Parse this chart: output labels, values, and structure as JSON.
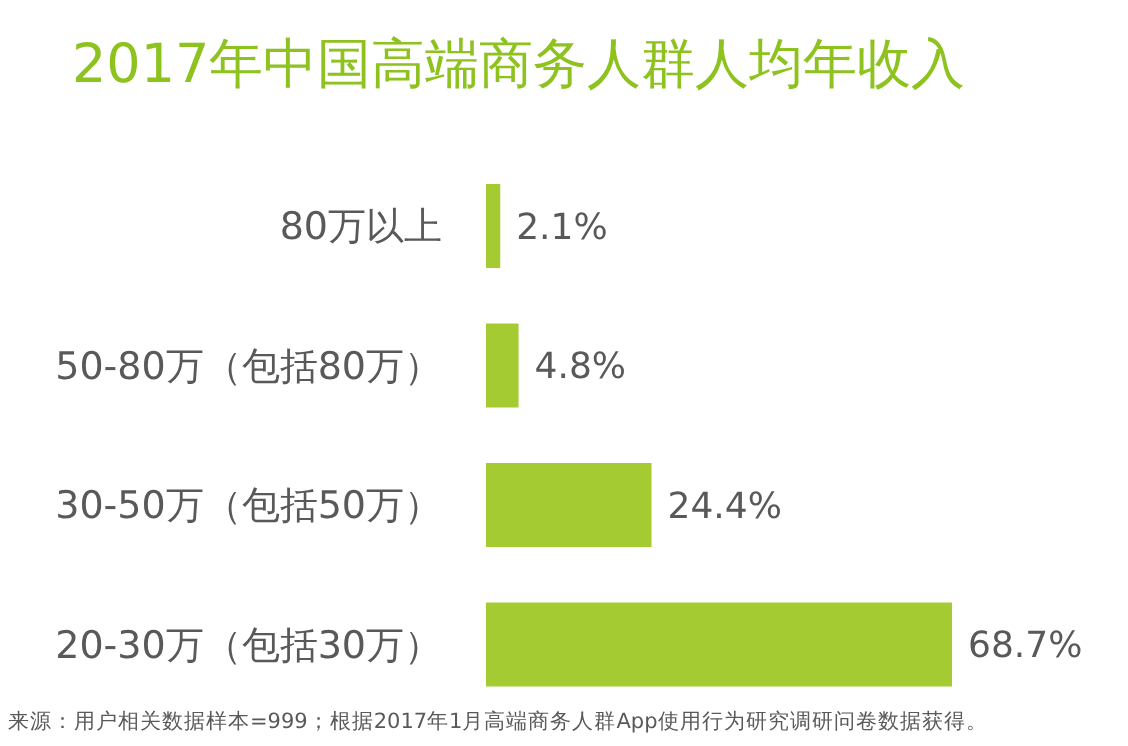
{
  "chart_data": {
    "type": "bar",
    "orientation": "horizontal",
    "title": "2017年中国高端商务人群人均年收入",
    "categories": [
      "80万以上",
      "50-80万（包括80万）",
      "30-50万（包括50万）",
      "20-30万（包括30万）"
    ],
    "values": [
      2.1,
      4.8,
      24.4,
      68.7
    ],
    "value_labels": [
      "2.1%",
      "4.8%",
      "24.4%",
      "68.7%"
    ],
    "color": "#a5cb32",
    "annotations": [
      "来源：用户相关数据样本=999；根据2017年1月高端商务人群App使用行为研究调研问卷数据获得。"
    ]
  }
}
